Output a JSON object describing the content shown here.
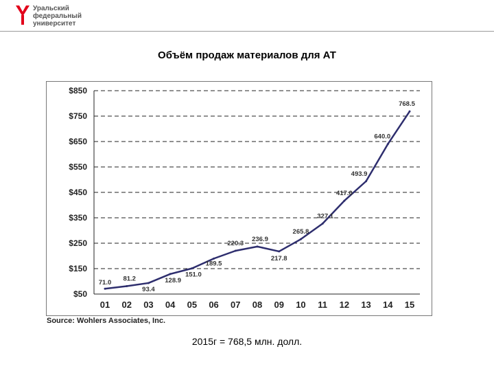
{
  "logo": {
    "lines": [
      "Уральский",
      "федеральный",
      "университет"
    ],
    "color": "#e2001a"
  },
  "slide_title": "Объём продаж материалов для АТ",
  "source": "Source: Wohlers Associates, Inc.",
  "footer_note": "2015г = 768,5 млн. долл.",
  "chart_data": {
    "type": "line",
    "title": "",
    "xlabel": "",
    "ylabel": "",
    "categories": [
      "01",
      "02",
      "03",
      "04",
      "05",
      "06",
      "07",
      "08",
      "09",
      "10",
      "11",
      "12",
      "13",
      "14",
      "15"
    ],
    "values": [
      71.0,
      81.2,
      93.4,
      128.9,
      151.0,
      189.5,
      220.3,
      236.9,
      217.8,
      265.8,
      327.1,
      417.0,
      493.9,
      640.0,
      768.5
    ],
    "point_labels": [
      "71.0",
      "81.2",
      "93.4",
      "128.9",
      "151.0",
      "189.5",
      "220.3",
      "236.9",
      "217.8",
      "265.8",
      "327.1",
      "417.0",
      "493.9",
      "640.0",
      "768.5"
    ],
    "yticks": [
      50,
      150,
      250,
      350,
      450,
      550,
      650,
      750,
      850
    ],
    "ytick_labels": [
      "$50",
      "$150",
      "$250",
      "$350",
      "$450",
      "$550",
      "$650",
      "$750",
      "$850"
    ],
    "ylim": [
      50,
      850
    ],
    "grid": "dashed horizontal",
    "line_color": "#2e2e6e",
    "grid_color": "#222222"
  }
}
